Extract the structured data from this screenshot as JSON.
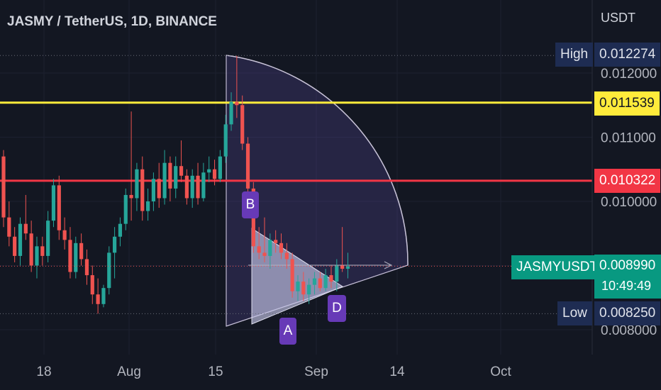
{
  "header": {
    "title": "JASMY / TetherUS, 1D, BINANCE"
  },
  "price_axis": {
    "unit": "USDT",
    "ticks": [
      "0.012000",
      "0.011000",
      "0.010000",
      "0.008000"
    ]
  },
  "time_axis": {
    "ticks": [
      "18",
      "Aug",
      "15",
      "Sep",
      "14",
      "Oct"
    ]
  },
  "badges": {
    "high_label": "High",
    "high_value": "0.012274",
    "yellow_value": "0.011539",
    "red_value": "0.010322",
    "symbol_label": "JASMYUSDT",
    "last_value": "0.008990",
    "countdown": "10:49:49",
    "low_label": "Low",
    "low_value": "0.008250"
  },
  "pattern_labels": {
    "a": "A",
    "b": "B",
    "d": "D"
  },
  "colors": {
    "background": "#131722",
    "up": "#26a69a",
    "down": "#ef5350",
    "yellow_line": "#ffeb3b",
    "red_line": "#f23645",
    "high_low_badge": "#1e2c52",
    "last_badge": "#089981",
    "pattern_label": "#673ab7"
  },
  "chart_data": {
    "type": "candlestick",
    "title": "JASMY / TetherUS, 1D, BINANCE",
    "y_axis_unit": "USDT",
    "ylim": [
      0.0075,
      0.0131
    ],
    "x_ticks": [
      "18",
      "Aug",
      "15",
      "Sep",
      "14",
      "Oct"
    ],
    "horizontal_lines": [
      {
        "value": 0.011539,
        "color": "yellow"
      },
      {
        "value": 0.010322,
        "color": "red"
      }
    ],
    "high": 0.012274,
    "low": 0.00825,
    "last": 0.00899,
    "candles": [
      [
        0.0107,
        0.0108,
        0.0096,
        0.00975
      ],
      [
        0.00975,
        0.01,
        0.0093,
        0.00945
      ],
      [
        0.00945,
        0.0096,
        0.00905,
        0.00915
      ],
      [
        0.00915,
        0.00975,
        0.009,
        0.00965
      ],
      [
        0.00965,
        0.0101,
        0.0094,
        0.0095
      ],
      [
        0.0095,
        0.0097,
        0.0089,
        0.009
      ],
      [
        0.009,
        0.00945,
        0.0088,
        0.0093
      ],
      [
        0.0093,
        0.00945,
        0.009,
        0.00915
      ],
      [
        0.00915,
        0.00985,
        0.00905,
        0.0097
      ],
      [
        0.0097,
        0.01035,
        0.0096,
        0.01025
      ],
      [
        0.01025,
        0.0104,
        0.0094,
        0.00955
      ],
      [
        0.00955,
        0.00975,
        0.00925,
        0.0094
      ],
      [
        0.0094,
        0.0096,
        0.0088,
        0.0089
      ],
      [
        0.0089,
        0.00945,
        0.0088,
        0.00935
      ],
      [
        0.00935,
        0.0095,
        0.009,
        0.0091
      ],
      [
        0.0091,
        0.00925,
        0.0087,
        0.00885
      ],
      [
        0.00885,
        0.009,
        0.0084,
        0.00855
      ],
      [
        0.00855,
        0.0088,
        0.00825,
        0.0084
      ],
      [
        0.0084,
        0.0087,
        0.00835,
        0.00865
      ],
      [
        0.00865,
        0.0093,
        0.00855,
        0.0092
      ],
      [
        0.0092,
        0.0096,
        0.0088,
        0.00945
      ],
      [
        0.00945,
        0.00975,
        0.0093,
        0.00965
      ],
      [
        0.00965,
        0.0102,
        0.00955,
        0.0101
      ],
      [
        0.0101,
        0.0114,
        0.0097,
        0.01005
      ],
      [
        0.01005,
        0.0106,
        0.00985,
        0.0105
      ],
      [
        0.0105,
        0.0107,
        0.0097,
        0.00985
      ],
      [
        0.00985,
        0.0102,
        0.0097,
        0.01
      ],
      [
        0.01,
        0.01045,
        0.00985,
        0.01035
      ],
      [
        0.01035,
        0.0106,
        0.0099,
        0.01005
      ],
      [
        0.01005,
        0.0108,
        0.00995,
        0.0106
      ],
      [
        0.0106,
        0.0107,
        0.01,
        0.0102
      ],
      [
        0.0102,
        0.0107,
        0.01005,
        0.01055
      ],
      [
        0.01055,
        0.01095,
        0.0103,
        0.0104
      ],
      [
        0.0104,
        0.0105,
        0.00995,
        0.01005
      ],
      [
        0.01005,
        0.0105,
        0.0099,
        0.0104
      ],
      [
        0.0104,
        0.0106,
        0.00995,
        0.01005
      ],
      [
        0.01005,
        0.0106,
        0.01,
        0.01045
      ],
      [
        0.01045,
        0.0107,
        0.0103,
        0.0105
      ],
      [
        0.0105,
        0.01065,
        0.01025,
        0.01035
      ],
      [
        0.01035,
        0.0108,
        0.0103,
        0.0107
      ],
      [
        0.0107,
        0.01135,
        0.0106,
        0.0112
      ],
      [
        0.0112,
        0.0117,
        0.0111,
        0.01155
      ],
      [
        0.01155,
        0.01227,
        0.0113,
        0.0115
      ],
      [
        0.0115,
        0.01165,
        0.0108,
        0.0109
      ],
      [
        0.0109,
        0.011,
        0.0101,
        0.0102
      ],
      [
        0.0102,
        0.0103,
        0.0092,
        0.0093
      ],
      [
        0.0093,
        0.0096,
        0.0091,
        0.0092
      ],
      [
        0.0092,
        0.00975,
        0.00905,
        0.00915
      ],
      [
        0.00915,
        0.0095,
        0.00895,
        0.0094
      ],
      [
        0.0094,
        0.00955,
        0.0092,
        0.00935
      ],
      [
        0.00935,
        0.0095,
        0.0091,
        0.0092
      ],
      [
        0.0092,
        0.00935,
        0.00895,
        0.0091
      ],
      [
        0.0091,
        0.0092,
        0.0085,
        0.0086
      ],
      [
        0.0086,
        0.00885,
        0.00845,
        0.00875
      ],
      [
        0.00875,
        0.0089,
        0.00845,
        0.00855
      ],
      [
        0.00855,
        0.0088,
        0.0084,
        0.0087
      ],
      [
        0.0087,
        0.0089,
        0.00855,
        0.0088
      ],
      [
        0.0088,
        0.0089,
        0.0086,
        0.00865
      ],
      [
        0.00865,
        0.00895,
        0.0086,
        0.00885
      ],
      [
        0.00885,
        0.009,
        0.00865,
        0.00875
      ],
      [
        0.00875,
        0.0091,
        0.0086,
        0.009
      ],
      [
        0.009,
        0.0096,
        0.0089,
        0.00895
      ],
      [
        0.00895,
        0.0092,
        0.0088,
        0.00899
      ]
    ]
  }
}
